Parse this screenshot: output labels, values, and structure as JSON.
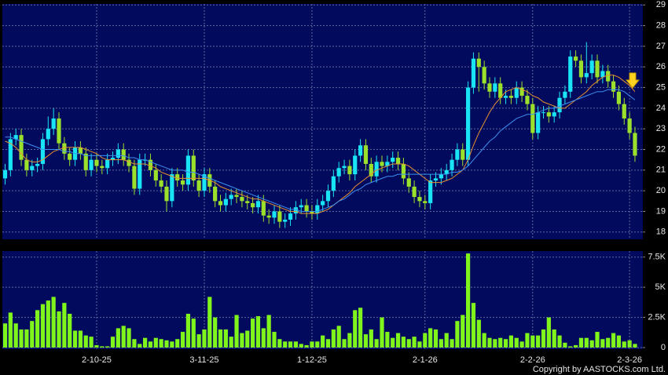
{
  "chart_data": {
    "type": "candlestick",
    "categories": [
      null,
      null,
      null,
      null,
      null,
      null,
      null,
      null,
      null,
      null,
      null,
      null,
      null,
      null,
      null,
      null,
      null,
      "2-10-25",
      null,
      null,
      null,
      null,
      null,
      null,
      null,
      null,
      null,
      null,
      null,
      null,
      null,
      null,
      null,
      null,
      null,
      null,
      null,
      "3-11-25",
      null,
      null,
      null,
      null,
      null,
      null,
      null,
      null,
      null,
      null,
      null,
      null,
      null,
      null,
      null,
      null,
      null,
      null,
      null,
      "1-12-25",
      null,
      null,
      null,
      null,
      null,
      null,
      null,
      null,
      null,
      null,
      null,
      null,
      null,
      null,
      null,
      null,
      null,
      null,
      null,
      null,
      "2-1-26",
      null,
      null,
      null,
      null,
      null,
      null,
      null,
      null,
      null,
      null,
      null,
      null,
      null,
      null,
      null,
      null,
      null,
      null,
      null,
      "2-2-26",
      null,
      null,
      null,
      null,
      null,
      null,
      null,
      null,
      null,
      null,
      null,
      null,
      null,
      null,
      null,
      null,
      null,
      "2-3-26",
      null
    ],
    "open": [
      20.6,
      21.0,
      22.5,
      22.7,
      21.5,
      21.0,
      21.2,
      21.3,
      22.5,
      23.0,
      23.5,
      22.3,
      21.8,
      21.5,
      22.1,
      21.8,
      21.0,
      21.5,
      21.2,
      21.1,
      21.5,
      21.6,
      22.0,
      21.5,
      21.2,
      20.1,
      21.5,
      21.5,
      21.0,
      20.5,
      20.2,
      19.5,
      20.8,
      20.5,
      20.3,
      21.7,
      20.5,
      20.0,
      20.8,
      20.2,
      19.5,
      19.3,
      19.6,
      19.8,
      19.7,
      19.5,
      19.4,
      19.2,
      19.5,
      18.8,
      18.7,
      19.0,
      18.5,
      18.6,
      18.9,
      19.2,
      19.3,
      19.0,
      18.9,
      19.3,
      19.5,
      20.0,
      20.7,
      21.1,
      21.2,
      20.8,
      21.7,
      22.2,
      21.3,
      20.7,
      21.4,
      21.2,
      21.4,
      21.6,
      21.3,
      20.6,
      20.2,
      19.7,
      19.5,
      19.4,
      20.5,
      20.6,
      20.8,
      21.0,
      21.5,
      22.0,
      21.5,
      25.0,
      26.4,
      26.0,
      25.2,
      24.8,
      25.2,
      24.5,
      24.6,
      24.5,
      25.0,
      24.6,
      24.2,
      22.8,
      23.8,
      23.8,
      23.6,
      23.8,
      24.5,
      24.8,
      26.5,
      26.3,
      25.5,
      25.7,
      26.3,
      25.5,
      25.8,
      25.3,
      24.8,
      24.2,
      23.5,
      22.8
    ],
    "high": [
      21.3,
      22.8,
      23.0,
      23.0,
      21.8,
      21.5,
      21.6,
      22.8,
      23.6,
      24.0,
      23.8,
      22.6,
      22.1,
      22.4,
      22.4,
      22.1,
      21.8,
      21.8,
      21.5,
      21.8,
      21.9,
      22.3,
      22.3,
      21.8,
      21.5,
      21.8,
      21.8,
      21.8,
      21.3,
      20.8,
      20.5,
      21.1,
      21.1,
      20.8,
      22.0,
      22.0,
      20.8,
      21.1,
      21.1,
      20.5,
      19.8,
      19.9,
      20.1,
      20.1,
      20.0,
      19.8,
      19.7,
      19.8,
      19.8,
      19.1,
      19.3,
      19.3,
      18.9,
      19.2,
      19.5,
      19.6,
      19.6,
      19.3,
      19.6,
      19.8,
      20.3,
      21.0,
      21.4,
      21.5,
      21.5,
      22.0,
      22.5,
      22.5,
      21.6,
      21.7,
      21.7,
      21.7,
      21.9,
      21.9,
      21.6,
      20.9,
      20.5,
      20.0,
      19.8,
      20.8,
      20.9,
      21.1,
      21.3,
      21.8,
      22.3,
      22.3,
      25.3,
      26.7,
      26.7,
      26.3,
      25.5,
      25.5,
      25.5,
      24.9,
      24.9,
      25.3,
      25.3,
      24.9,
      24.5,
      24.1,
      24.1,
      24.1,
      24.1,
      24.8,
      25.1,
      26.8,
      26.8,
      26.6,
      27.2,
      26.6,
      26.6,
      26.1,
      26.1,
      25.6,
      25.1,
      24.5,
      23.8,
      23.1
    ],
    "low": [
      20.3,
      20.7,
      22.2,
      21.2,
      20.7,
      20.7,
      20.9,
      21.0,
      22.2,
      22.7,
      22.0,
      21.5,
      21.2,
      21.2,
      21.5,
      20.7,
      20.7,
      20.9,
      20.8,
      20.8,
      21.2,
      21.3,
      21.2,
      20.9,
      19.8,
      19.8,
      21.2,
      20.7,
      20.2,
      19.9,
      19.0,
      19.2,
      20.2,
      20.0,
      20.0,
      20.2,
      19.7,
      19.7,
      19.9,
      19.2,
      19.0,
      19.0,
      19.3,
      19.4,
      19.2,
      19.1,
      18.9,
      18.9,
      18.5,
      18.4,
      18.4,
      18.2,
      18.2,
      18.3,
      18.6,
      18.9,
      18.7,
      18.6,
      18.6,
      19.0,
      19.2,
      19.7,
      20.4,
      20.8,
      20.5,
      20.5,
      21.4,
      21.0,
      20.4,
      20.4,
      20.9,
      20.9,
      21.1,
      21.0,
      20.3,
      19.9,
      19.4,
      19.2,
      19.1,
      19.1,
      20.2,
      20.3,
      20.5,
      20.7,
      21.2,
      21.2,
      21.2,
      24.7,
      24.8,
      24.9,
      24.5,
      24.5,
      24.2,
      24.2,
      24.2,
      24.2,
      24.3,
      23.9,
      22.5,
      22.5,
      23.5,
      23.3,
      23.3,
      23.5,
      24.2,
      24.5,
      26.0,
      25.2,
      25.2,
      25.4,
      25.2,
      25.2,
      25.0,
      24.5,
      23.9,
      23.2,
      22.5,
      21.4
    ],
    "close": [
      21.0,
      22.5,
      22.7,
      21.5,
      21.0,
      21.2,
      21.3,
      22.5,
      23.0,
      23.5,
      22.3,
      21.8,
      21.5,
      22.1,
      21.8,
      21.0,
      21.5,
      21.2,
      21.1,
      21.5,
      21.6,
      22.0,
      21.5,
      21.2,
      20.1,
      21.5,
      21.5,
      21.0,
      20.5,
      20.2,
      19.5,
      20.8,
      20.5,
      20.3,
      21.7,
      20.5,
      20.0,
      20.8,
      20.2,
      19.5,
      19.3,
      19.6,
      19.8,
      19.7,
      19.5,
      19.4,
      19.2,
      19.5,
      18.8,
      18.7,
      19.0,
      18.5,
      18.6,
      18.9,
      19.2,
      19.3,
      19.0,
      18.9,
      19.3,
      19.5,
      20.0,
      20.7,
      21.1,
      21.2,
      20.8,
      21.7,
      22.2,
      21.3,
      20.7,
      21.4,
      21.2,
      21.4,
      21.6,
      21.3,
      20.6,
      20.2,
      19.7,
      19.5,
      19.4,
      20.5,
      20.6,
      20.8,
      21.0,
      21.5,
      22.0,
      21.5,
      25.0,
      26.4,
      26.0,
      25.2,
      24.8,
      25.2,
      24.5,
      24.6,
      24.5,
      25.0,
      24.6,
      24.2,
      22.8,
      23.8,
      23.8,
      23.6,
      23.8,
      24.5,
      24.8,
      26.5,
      26.3,
      25.5,
      25.7,
      26.3,
      25.5,
      25.8,
      25.3,
      24.8,
      24.2,
      23.5,
      22.8,
      21.7
    ],
    "up_color": "#18e4f4",
    "down_color": "#9be02a",
    "ylim": [
      17.65,
      29.05
    ],
    "yticks": [
      18,
      19,
      20,
      21,
      22,
      23,
      24,
      25,
      26,
      27,
      28,
      29
    ],
    "grid": true,
    "lines": [
      {
        "color": "#e8912e",
        "values": [
          22.4,
          22.3,
          22.1,
          21.8,
          21.5,
          21.4,
          21.4,
          21.5,
          21.7,
          21.9,
          22.0,
          22.1,
          22.1,
          22.1,
          22.1,
          22.0,
          21.9,
          21.8,
          21.6,
          21.5,
          21.5,
          21.5,
          21.5,
          21.4,
          21.3,
          21.3,
          21.3,
          21.2,
          21.1,
          20.9,
          20.8,
          20.7,
          20.6,
          20.6,
          20.6,
          20.6,
          20.6,
          20.6,
          20.5,
          20.4,
          20.2,
          20.1,
          20.0,
          19.9,
          19.8,
          19.7,
          19.6,
          19.6,
          19.5,
          19.4,
          19.3,
          19.2,
          19.1,
          19.0,
          19.0,
          18.9,
          18.9,
          18.9,
          18.9,
          19.0,
          19.1,
          19.3,
          19.5,
          19.7,
          19.9,
          20.2,
          20.4,
          20.6,
          20.8,
          21.0,
          21.1,
          21.2,
          21.3,
          21.3,
          21.3,
          21.2,
          21.0,
          20.8,
          20.6,
          20.4,
          20.4,
          20.4,
          20.5,
          20.6,
          20.8,
          21.0,
          21.5,
          22.2,
          22.8,
          23.3,
          23.8,
          24.2,
          24.5,
          24.8,
          24.9,
          25.0,
          24.9,
          24.8,
          24.6,
          24.5,
          24.3,
          24.2,
          24.1,
          24.0,
          24.0,
          24.2,
          24.4,
          24.6,
          24.8,
          25.1,
          25.3,
          25.5,
          25.6,
          25.6,
          25.5,
          25.3,
          25.1,
          24.8
        ]
      },
      {
        "color": "#3d8ff0",
        "values": [
          22.6,
          22.6,
          22.5,
          22.4,
          22.3,
          22.2,
          22.1,
          22.0,
          22.0,
          22.0,
          22.0,
          21.9,
          21.9,
          21.8,
          21.8,
          21.7,
          21.7,
          21.7,
          21.7,
          21.7,
          21.7,
          21.7,
          21.7,
          21.6,
          21.6,
          21.5,
          21.5,
          21.4,
          21.3,
          21.2,
          21.1,
          21.0,
          21.0,
          21.0,
          20.9,
          20.9,
          20.8,
          20.7,
          20.6,
          20.5,
          20.4,
          20.3,
          20.2,
          20.1,
          20.0,
          19.9,
          19.8,
          19.7,
          19.6,
          19.5,
          19.4,
          19.3,
          19.2,
          19.1,
          19.1,
          19.0,
          19.0,
          19.0,
          19.0,
          19.1,
          19.2,
          19.3,
          19.5,
          19.6,
          19.8,
          20.0,
          20.1,
          20.3,
          20.4,
          20.5,
          20.6,
          20.7,
          20.7,
          20.8,
          20.8,
          20.8,
          20.8,
          20.8,
          20.8,
          20.8,
          20.8,
          20.8,
          20.8,
          20.9,
          20.9,
          21.0,
          21.2,
          21.5,
          21.8,
          22.1,
          22.4,
          22.6,
          22.9,
          23.1,
          23.3,
          23.5,
          23.6,
          23.7,
          23.7,
          23.8,
          23.9,
          24.0,
          24.0,
          24.1,
          24.2,
          24.3,
          24.4,
          24.5,
          24.6,
          24.7,
          24.8,
          24.8,
          24.9,
          24.9,
          24.9,
          24.8,
          24.6,
          24.4
        ]
      }
    ],
    "volume": {
      "type": "bar",
      "color": "#7ff51c",
      "values": [
        2000,
        2900,
        2000,
        1500,
        1500,
        2200,
        3100,
        3600,
        3900,
        4200,
        3000,
        3700,
        2800,
        1400,
        1400,
        1000,
        900,
        200,
        100,
        100,
        900,
        1600,
        1800,
        1600,
        700,
        300,
        800,
        500,
        800,
        700,
        600,
        500,
        700,
        1300,
        2800,
        2400,
        1100,
        1500,
        4200,
        2500,
        1500,
        1500,
        900,
        2700,
        1200,
        1400,
        2400,
        2600,
        1600,
        2700,
        1300,
        700,
        500,
        500,
        500,
        300,
        200,
        500,
        500,
        1000,
        700,
        1500,
        1800,
        700,
        1200,
        3100,
        3300,
        1100,
        1500,
        700,
        2500,
        1300,
        800,
        1200,
        900,
        700,
        900,
        500,
        1200,
        1600,
        1500,
        700,
        1200,
        700,
        2200,
        2700,
        7800,
        3700,
        2300,
        1200,
        800,
        700,
        800,
        700,
        1000,
        800,
        500,
        1200,
        1000,
        1000,
        1500,
        2500,
        1500,
        1000,
        400,
        100,
        200,
        800,
        800,
        600,
        1300,
        700,
        800,
        1200,
        1000,
        500,
        600,
        300
      ],
      "ylim": [
        0,
        8000
      ],
      "yticks": [
        0,
        {
          "value": 2500,
          "label": "2.5K"
        },
        {
          "value": 5000,
          "label": "5K"
        },
        {
          "value": 7500,
          "label": "7.5K"
        }
      ]
    },
    "copyright": "Copyright by AASTOCKS.com Ltd."
  }
}
